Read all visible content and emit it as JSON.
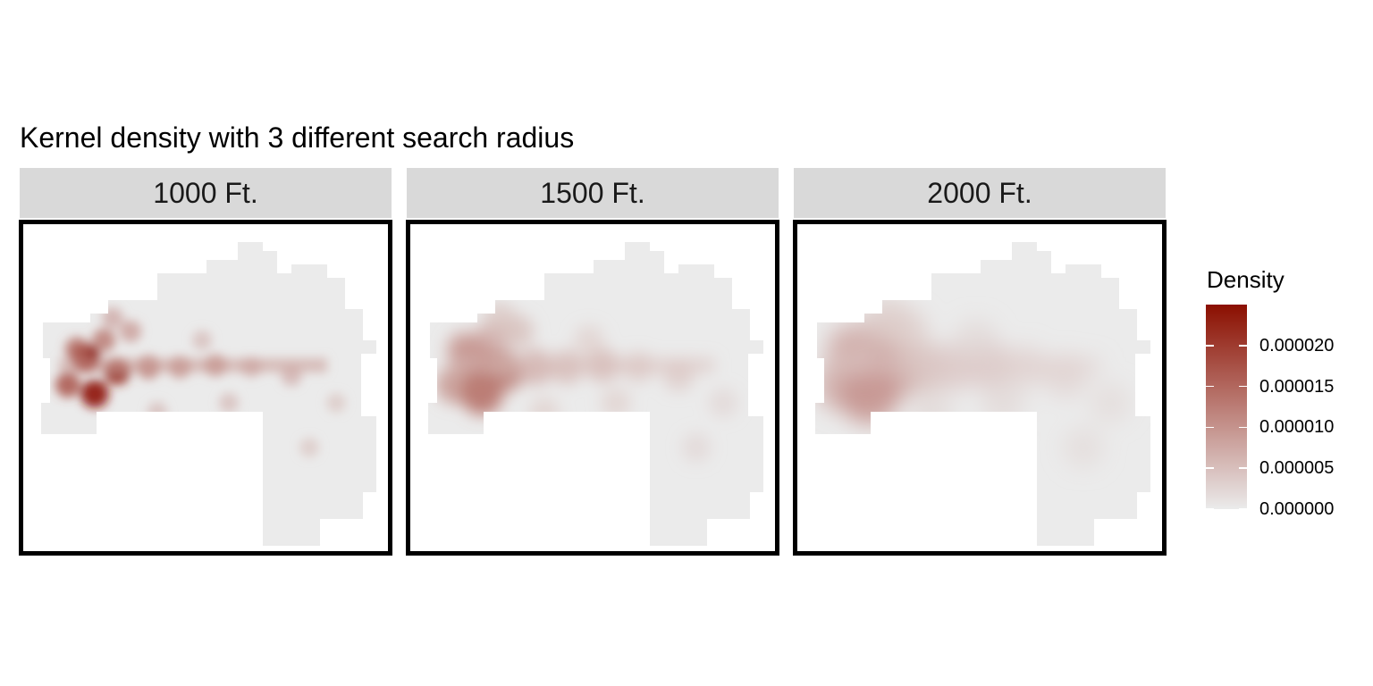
{
  "title": "Kernel density with 3 different search radius",
  "chart_data": {
    "type": "heatmap",
    "title": "Kernel density with 3 different search radius",
    "facets": [
      {
        "label": "1000 Ft.",
        "search_radius_ft": 1000,
        "max_density": 2.5e-05
      },
      {
        "label": "1500 Ft.",
        "search_radius_ft": 1500,
        "max_density": 1.4e-05
      },
      {
        "label": "2000 Ft.",
        "search_radius_ft": 2000,
        "max_density": 1e-05
      }
    ],
    "legend": {
      "title": "Density",
      "position": "right",
      "ticks": [
        {
          "label": "0.000020",
          "value": 2e-05
        },
        {
          "label": "0.000015",
          "value": 1.5e-05
        },
        {
          "label": "0.000010",
          "value": 1e-05
        },
        {
          "label": "0.000005",
          "value": 5e-06
        },
        {
          "label": "0.000000",
          "value": 0.0
        }
      ],
      "range": [
        0,
        2.5e-05
      ],
      "low_color": "#ebebeb",
      "high_color": "#8b0f00"
    },
    "grid": false
  }
}
